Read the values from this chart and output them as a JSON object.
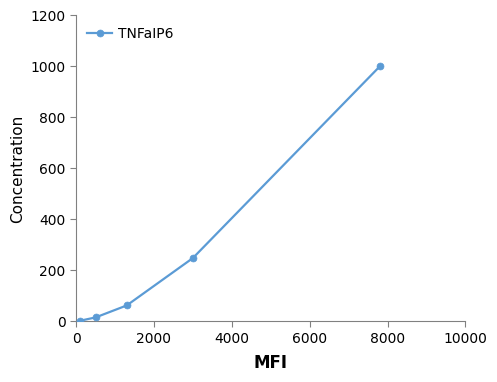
{
  "x": [
    100,
    500,
    1300,
    3000,
    7800
  ],
  "y": [
    2,
    15,
    62,
    248,
    1000
  ],
  "line_color": "#5b9bd5",
  "marker_color": "#5b9bd5",
  "marker_style": "o",
  "marker_size": 5,
  "line_width": 1.6,
  "xlabel": "MFI",
  "ylabel": "Concentration",
  "xlim": [
    0,
    10000
  ],
  "ylim": [
    0,
    1200
  ],
  "xticks": [
    0,
    2000,
    4000,
    6000,
    8000,
    10000
  ],
  "yticks": [
    0,
    200,
    400,
    600,
    800,
    1000,
    1200
  ],
  "legend_label": "TNFaIP6",
  "legend_loc": "upper left",
  "xlabel_fontsize": 12,
  "ylabel_fontsize": 11,
  "tick_fontsize": 10,
  "legend_fontsize": 10,
  "background_color": "#ffffff",
  "spine_color": "#808080",
  "grid": false
}
